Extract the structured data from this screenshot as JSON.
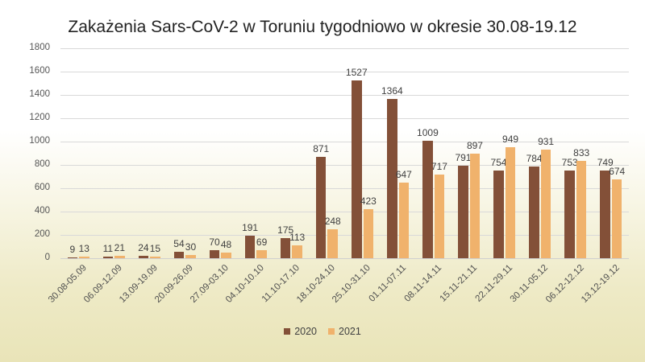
{
  "chart_data": {
    "type": "bar",
    "title": "Zakażenia Sars-CoV-2 w Toruniu tygodniowo w okresie 30.08-19.12",
    "xlabel": "",
    "ylabel": "",
    "ylim": [
      0,
      1800
    ],
    "yticks": [
      0,
      200,
      400,
      600,
      800,
      1000,
      1200,
      1400,
      1600,
      1800
    ],
    "grid": true,
    "legend_position": "bottom",
    "categories": [
      "30.08-05.09",
      "06.09-12.09",
      "13.09-19.09",
      "20.09-26.09",
      "27.09-03.10",
      "04.10-10.10",
      "11.10-17.10",
      "18.10-24.10",
      "25.10-31.10",
      "01.11-07.11",
      "08.11-14.11",
      "15.11-21.11",
      "22.11-29.11",
      "30.11-05.12",
      "06.12-12.12",
      "13.12-19.12"
    ],
    "series": [
      {
        "name": "2020",
        "color": "#835038",
        "values": [
          9,
          11,
          24,
          54,
          70,
          191,
          175,
          871,
          1527,
          1364,
          1009,
          791,
          754,
          784,
          753,
          749
        ]
      },
      {
        "name": "2021",
        "color": "#f0b26c",
        "values": [
          13,
          21,
          15,
          30,
          48,
          69,
          113,
          248,
          423,
          647,
          717,
          897,
          949,
          931,
          833,
          674
        ]
      }
    ]
  }
}
